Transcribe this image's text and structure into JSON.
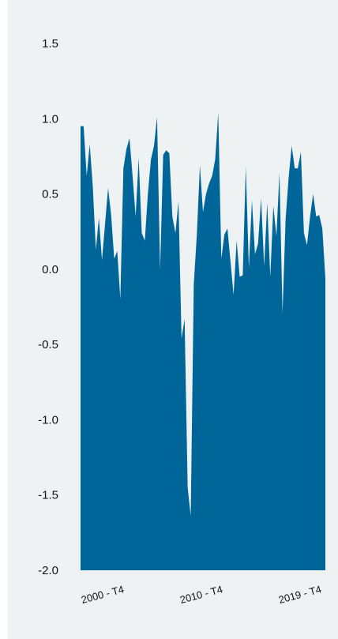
{
  "chart_data": {
    "type": "area",
    "title": "",
    "xlabel": "",
    "ylabel": "",
    "ylim": [
      -2.0,
      1.5
    ],
    "yticks": [
      "1.5",
      "1.0",
      "0.5",
      "0.0",
      "-0.5",
      "-1.0",
      "-1.5",
      "-2.0"
    ],
    "xticks": [
      "2000 - T4",
      "2010 - T4",
      "2019 - T4"
    ],
    "fill_color": "#006699",
    "grid": false,
    "series": [
      {
        "values": [
          0.95,
          0.95,
          0.62,
          0.83,
          0.55,
          0.13,
          0.34,
          0.06,
          0.3,
          0.54,
          0.36,
          0.07,
          0.12,
          -0.2,
          0.67,
          0.8,
          0.87,
          0.62,
          0.35,
          0.74,
          0.24,
          0.19,
          0.5,
          0.73,
          0.82,
          1.01,
          0.0,
          0.76,
          0.79,
          0.77,
          0.35,
          0.24,
          0.45,
          -0.46,
          -0.33,
          -1.45,
          -1.64,
          -0.1,
          0.23,
          0.69,
          0.38,
          0.5,
          0.57,
          0.62,
          0.73,
          1.04,
          0.07,
          0.23,
          0.27,
          0.05,
          -0.17,
          0.19,
          -0.05,
          -0.04,
          0.68,
          0.01,
          0.46,
          0.1,
          0.17,
          0.47,
          0.02,
          0.44,
          -0.05,
          0.42,
          0.22,
          0.64,
          -0.29,
          0.33,
          0.61,
          0.82,
          0.67,
          0.67,
          0.78,
          0.24,
          0.16,
          0.35,
          0.5,
          0.35,
          0.36,
          0.27,
          -0.06
        ]
      }
    ]
  }
}
